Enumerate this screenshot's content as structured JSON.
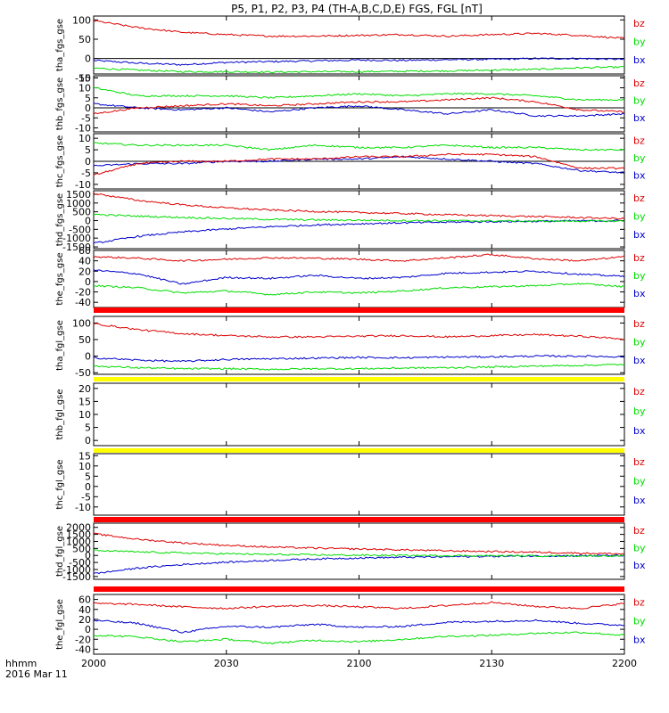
{
  "title": "P5, P1, P2, P3, P4 (TH-A,B,C,D,E) FGS, FGL [nT]",
  "time_axis": {
    "unit_label": "hhmm",
    "date_label": "2016 Mar 11",
    "ticks": [
      "2000",
      "2030",
      "2100",
      "2130",
      "2200"
    ],
    "start": "2000",
    "end": "2200"
  },
  "colors": {
    "bx": "#0000cc",
    "by": "#00dd00",
    "bz": "#dd0000",
    "bar_red": "#ff0000",
    "bar_yellow": "#ffff00",
    "frame": "#000000"
  },
  "chart_data": [
    {
      "type": "line",
      "panel": "tha_fgs_gse",
      "ylabel": "tha_fgs_gse",
      "ylim": [
        -40,
        110
      ],
      "yticks": [
        "100",
        "50",
        "0",
        "-50"
      ],
      "zero_line": true,
      "legend": [
        "bz",
        "by",
        "bx"
      ],
      "x": [
        "2000",
        "2010",
        "2020",
        "2030",
        "2040",
        "2050",
        "2100",
        "2110",
        "2120",
        "2130",
        "2140",
        "2150",
        "2200"
      ],
      "series": [
        {
          "name": "bz",
          "values": [
            98,
            80,
            68,
            62,
            58,
            58,
            60,
            62,
            58,
            62,
            65,
            60,
            52
          ]
        },
        {
          "name": "by",
          "values": [
            -25,
            -30,
            -34,
            -34,
            -35,
            -34,
            -34,
            -33,
            -32,
            -30,
            -28,
            -24,
            -22
          ]
        },
        {
          "name": "bx",
          "values": [
            -5,
            -12,
            -16,
            -10,
            -8,
            -6,
            -4,
            -5,
            -3,
            -2,
            0,
            0,
            -2
          ]
        }
      ]
    },
    {
      "type": "line",
      "panel": "thb_fgs_gse",
      "ylabel": "thb_fgs_gse",
      "ylim": [
        -12,
        16
      ],
      "yticks": [
        "15",
        "10",
        "5",
        "0",
        "-5",
        "-10"
      ],
      "zero_line": true,
      "legend": [
        "bz",
        "by",
        "bx"
      ],
      "x": [
        "2000",
        "2010",
        "2020",
        "2030",
        "2040",
        "2050",
        "2100",
        "2110",
        "2120",
        "2130",
        "2140",
        "2150",
        "2200"
      ],
      "series": [
        {
          "name": "bz",
          "values": [
            -3,
            0,
            1,
            2,
            1,
            2,
            3,
            3,
            4,
            5,
            3,
            -1,
            -2
          ]
        },
        {
          "name": "by",
          "values": [
            10,
            6,
            6,
            6,
            5,
            6,
            7,
            6,
            7,
            7,
            6,
            4,
            4
          ]
        },
        {
          "name": "bx",
          "values": [
            2,
            0,
            -1,
            0,
            -2,
            0,
            1,
            -1,
            -3,
            -1,
            -4,
            -4,
            -3
          ]
        }
      ]
    },
    {
      "type": "line",
      "panel": "thc_fgs_gse",
      "ylabel": "thc_fgs_gse",
      "ylim": [
        -12,
        12
      ],
      "yticks": [
        "10",
        "5",
        "0",
        "-5",
        "-10"
      ],
      "zero_line": true,
      "legend": [
        "bz",
        "by",
        "bx"
      ],
      "x": [
        "2000",
        "2010",
        "2020",
        "2030",
        "2040",
        "2050",
        "2100",
        "2110",
        "2120",
        "2130",
        "2140",
        "2150",
        "2200"
      ],
      "series": [
        {
          "name": "bz",
          "values": [
            -6,
            -1,
            0,
            0,
            1,
            1,
            2,
            2,
            3,
            3,
            2,
            -3,
            -3
          ]
        },
        {
          "name": "by",
          "values": [
            8,
            7,
            7,
            7,
            5,
            7,
            6,
            6,
            7,
            6,
            6,
            5,
            5
          ]
        },
        {
          "name": "bx",
          "values": [
            -2,
            -1,
            -1,
            0,
            0,
            1,
            1,
            2,
            1,
            0,
            -1,
            -4,
            -5
          ]
        }
      ]
    },
    {
      "type": "line",
      "panel": "thd_fgs_gse",
      "ylabel": "thd_fgs_gse",
      "ylim": [
        -1600,
        1700
      ],
      "yticks": [
        "1500",
        "1000",
        "500",
        "0",
        "-500",
        "-1000",
        "-1500"
      ],
      "zero_line": false,
      "legend": [
        "bz",
        "by",
        "bx"
      ],
      "x": [
        "2000",
        "2010",
        "2020",
        "2030",
        "2040",
        "2050",
        "2100",
        "2110",
        "2120",
        "2130",
        "2140",
        "2150",
        "2200"
      ],
      "series": [
        {
          "name": "bz",
          "values": [
            1550,
            1150,
            900,
            720,
            600,
            520,
            460,
            400,
            330,
            280,
            230,
            170,
            110
          ]
        },
        {
          "name": "by",
          "values": [
            350,
            250,
            180,
            120,
            70,
            40,
            20,
            0,
            -10,
            -20,
            -30,
            -30,
            -30
          ]
        },
        {
          "name": "bx",
          "values": [
            -1300,
            -900,
            -650,
            -480,
            -350,
            -250,
            -180,
            -130,
            -90,
            -60,
            -40,
            -20,
            -10
          ]
        }
      ]
    },
    {
      "type": "line",
      "panel": "the_fgs_gse",
      "ylabel": "the_fgs_gse",
      "ylim": [
        -50,
        60
      ],
      "yticks": [
        "60",
        "40",
        "20",
        "0",
        "-20",
        "-40"
      ],
      "zero_line": false,
      "legend": [
        "bz",
        "by",
        "bx"
      ],
      "x": [
        "2000",
        "2010",
        "2020",
        "2030",
        "2040",
        "2050",
        "2100",
        "2110",
        "2120",
        "2130",
        "2140",
        "2150",
        "2200"
      ],
      "series": [
        {
          "name": "bz",
          "values": [
            48,
            45,
            40,
            43,
            46,
            45,
            43,
            40,
            46,
            52,
            44,
            40,
            48
          ]
        },
        {
          "name": "by",
          "values": [
            -8,
            -12,
            -22,
            -18,
            -25,
            -20,
            -22,
            -18,
            -12,
            -10,
            -8,
            -4,
            -10
          ]
        },
        {
          "name": "bx",
          "values": [
            22,
            15,
            -5,
            8,
            6,
            12,
            6,
            8,
            16,
            18,
            20,
            14,
            10
          ]
        }
      ]
    },
    {
      "type": "line",
      "panel": "tha_fgl_gse",
      "ylabel": "tha_fgl_gse",
      "ylim": [
        -55,
        120
      ],
      "yticks": [
        "100",
        "50",
        "0",
        "-50"
      ],
      "zero_line": false,
      "legend": [
        "bz",
        "by",
        "bx"
      ],
      "x": [
        "2000",
        "2010",
        "2020",
        "2030",
        "2040",
        "2050",
        "2100",
        "2110",
        "2120",
        "2130",
        "2140",
        "2150",
        "2200"
      ],
      "series": [
        {
          "name": "bz",
          "values": [
            98,
            80,
            68,
            62,
            58,
            58,
            60,
            62,
            58,
            62,
            65,
            60,
            52
          ]
        },
        {
          "name": "by",
          "values": [
            -30,
            -35,
            -38,
            -38,
            -40,
            -38,
            -38,
            -36,
            -35,
            -33,
            -30,
            -28,
            -25
          ]
        },
        {
          "name": "bx",
          "values": [
            -5,
            -12,
            -16,
            -10,
            -8,
            -6,
            -4,
            -5,
            -3,
            -2,
            0,
            0,
            -2
          ]
        }
      ]
    },
    {
      "type": "line",
      "panel": "thb_fgl_gse",
      "ylabel": "thb_fgl_gse",
      "ylim": [
        -2,
        22
      ],
      "yticks": [
        "20",
        "15",
        "10",
        "5",
        "0"
      ],
      "zero_line": false,
      "legend": [
        "bz",
        "by",
        "bx"
      ],
      "series": []
    },
    {
      "type": "line",
      "panel": "thc_fgl_gse",
      "ylabel": "thc_fgl_gse",
      "ylim": [
        -14,
        16
      ],
      "yticks": [
        "15",
        "10",
        "5",
        "0",
        "-5",
        "-10"
      ],
      "zero_line": false,
      "legend": [
        "bz",
        "by",
        "bx"
      ],
      "series": []
    },
    {
      "type": "line",
      "panel": "thd_fgl_gse",
      "ylabel": "thd_fgl_gse",
      "ylim": [
        -1700,
        2300
      ],
      "yticks": [
        "2000",
        "1500",
        "1000",
        "500",
        "0",
        "-500",
        "-1000",
        "-1500"
      ],
      "zero_line": false,
      "legend": [
        "bz",
        "by",
        "bx"
      ],
      "x": [
        "2000",
        "2010",
        "2020",
        "2030",
        "2040",
        "2050",
        "2100",
        "2110",
        "2120",
        "2130",
        "2140",
        "2150",
        "2200"
      ],
      "series": [
        {
          "name": "bz",
          "values": [
            1550,
            1150,
            900,
            720,
            600,
            520,
            460,
            400,
            330,
            280,
            230,
            170,
            110
          ]
        },
        {
          "name": "by",
          "values": [
            350,
            250,
            180,
            120,
            70,
            40,
            20,
            0,
            -10,
            -20,
            -30,
            -30,
            -30
          ]
        },
        {
          "name": "bx",
          "values": [
            -1300,
            -900,
            -650,
            -480,
            -350,
            -250,
            -180,
            -130,
            -90,
            -60,
            -40,
            -20,
            -10
          ]
        }
      ]
    },
    {
      "type": "line",
      "panel": "the_fgl_gse",
      "ylabel": "the_fgl_gse",
      "ylim": [
        -50,
        70
      ],
      "yticks": [
        "60",
        "40",
        "20",
        "0",
        "-20",
        "-40"
      ],
      "zero_line": false,
      "legend": [
        "bz",
        "by",
        "bx"
      ],
      "x": [
        "2000",
        "2010",
        "2020",
        "2030",
        "2040",
        "2050",
        "2100",
        "2110",
        "2120",
        "2130",
        "2140",
        "2150",
        "2200"
      ],
      "series": [
        {
          "name": "bz",
          "values": [
            52,
            50,
            45,
            42,
            46,
            48,
            45,
            42,
            48,
            54,
            46,
            42,
            52
          ]
        },
        {
          "name": "by",
          "values": [
            -12,
            -15,
            -25,
            -20,
            -28,
            -22,
            -25,
            -20,
            -14,
            -12,
            -8,
            -6,
            -12
          ]
        },
        {
          "name": "bx",
          "values": [
            18,
            12,
            -6,
            6,
            4,
            10,
            4,
            6,
            14,
            16,
            18,
            12,
            8
          ]
        }
      ]
    }
  ]
}
